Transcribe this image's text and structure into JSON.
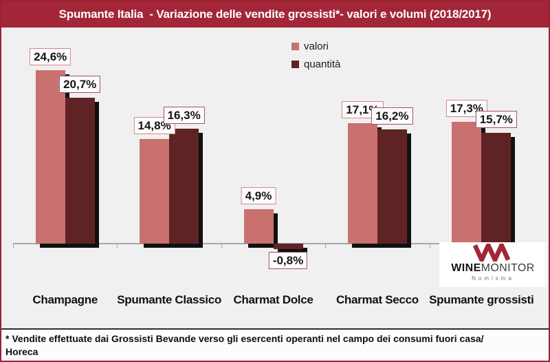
{
  "title": "Spumante Italia  - Variazione delle vendite grossisti*- valori e volumi (2018/2017)",
  "colors": {
    "accent_red": "#a32638",
    "background": "#f1f0f0",
    "bar_shadow": "#111111",
    "axis_gray": "#a9a7a8"
  },
  "chart_data": {
    "type": "bar",
    "title": "Spumante Italia  - Variazione delle vendite grossisti*- valori e volumi (2018/2017)",
    "categories": [
      "Champagne",
      "Spumante Classico",
      "Charmat Dolce",
      "Charmat Secco",
      "Spumante grossisti"
    ],
    "series": [
      {
        "name": "valori",
        "values": [
          24.6,
          14.8,
          4.9,
          17.1,
          17.3
        ],
        "labels": [
          "24,6%",
          "14,8%",
          "4,9%",
          "17,1%",
          "17,3%"
        ],
        "color": "#c8716f",
        "label_border": "#cf8987"
      },
      {
        "name": "quantità",
        "values": [
          20.7,
          16.3,
          -0.8,
          16.2,
          15.7
        ],
        "labels": [
          "20,7%",
          "16,3%",
          "-0,8%",
          "16,2%",
          "15,7%"
        ],
        "color": "#5f2326",
        "label_border": "#a14f5f"
      }
    ],
    "ylim": [
      -3,
      30
    ],
    "grid": false,
    "legend_position": "top-center",
    "value_format": "percent with comma decimal separator"
  },
  "logo": {
    "wine": "WINE",
    "monitor": "MONITOR",
    "subtext": "Nomisma"
  },
  "footnote": {
    "line1": "* Vendite effettuate dai Grossisti Bevande verso gli esercenti operanti nel campo dei consumi fuori casa/",
    "line2": "Horeca"
  }
}
